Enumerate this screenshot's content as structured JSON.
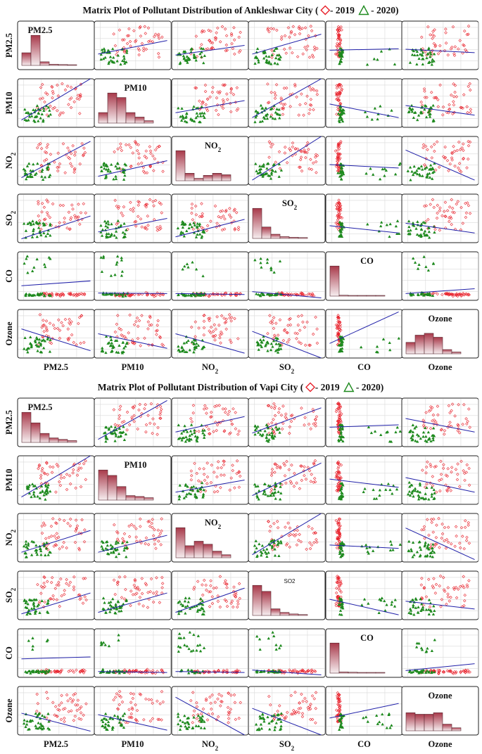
{
  "pollutants": [
    "PM2.5",
    "PM10",
    "NO2",
    "SO2",
    "CO",
    "Ozone"
  ],
  "colors": {
    "y2019": "#e8202a",
    "y2020": "#1e8a1e",
    "fit": "#1f1fa8",
    "frame": "#222222",
    "grid": "#d9d9d9",
    "bar_top": "#a8394a",
    "bar_bottom": "#f6eef0"
  },
  "chart_data": [
    {
      "type": "scatter",
      "title": "Matrix Plot of Pollutant Distribution of Ankleshwar City",
      "legend": {
        "placement": "top",
        "y2019": "- 2019",
        "y2020": "- 2020"
      },
      "grid": true,
      "diagonal_labels": [
        "PM2.5",
        "PM10",
        "NO₂",
        "SO₂",
        "CO",
        "Ozone"
      ],
      "histograms": [
        [
          0.42,
          1.0,
          0.12,
          0.04,
          0.03,
          0.02
        ],
        [
          0.35,
          1.0,
          0.85,
          0.35,
          0.2,
          0.08
        ],
        [
          1.0,
          0.25,
          0.08,
          0.18,
          0.25,
          0.2
        ],
        [
          1.0,
          0.38,
          0.14,
          0.06,
          0.04,
          0.03
        ],
        [
          1.0,
          0.03,
          0.02,
          0.02,
          0.02,
          0.01
        ],
        [
          0.38,
          0.62,
          0.68,
          0.55,
          0.14,
          0.06
        ]
      ],
      "fit_lines": [
        [
          null,
          [
            0.05,
            0.32,
            0.95,
            0.6
          ],
          [
            0.05,
            0.3,
            0.95,
            0.5
          ],
          [
            0.05,
            0.32,
            0.95,
            0.73
          ],
          [
            0.05,
            0.4,
            0.95,
            0.43
          ],
          [
            0.05,
            0.42,
            0.95,
            0.35
          ]
        ],
        [
          [
            0.05,
            0.15,
            0.95,
            1.0
          ],
          null,
          [
            0.05,
            0.3,
            0.95,
            0.55
          ],
          [
            0.05,
            0.2,
            0.95,
            1.0
          ],
          [
            0.05,
            0.48,
            0.95,
            0.2
          ],
          [
            0.05,
            0.45,
            0.95,
            0.25
          ]
        ],
        [
          [
            0.05,
            0.15,
            0.95,
            0.9
          ],
          [
            0.05,
            0.18,
            0.95,
            0.5
          ],
          null,
          [
            0.05,
            0.1,
            0.95,
            1.0
          ],
          [
            0.05,
            0.42,
            0.95,
            0.35
          ],
          [
            0.05,
            0.72,
            0.95,
            0.1
          ]
        ],
        [
          [
            0.05,
            0.08,
            0.95,
            0.55
          ],
          [
            0.05,
            0.22,
            0.95,
            0.5
          ],
          [
            0.05,
            0.12,
            0.95,
            0.48
          ],
          null,
          [
            0.05,
            0.35,
            0.95,
            0.2
          ],
          [
            0.05,
            0.4,
            0.95,
            0.2
          ]
        ],
        [
          [
            0.05,
            0.3,
            0.95,
            0.4
          ],
          [
            0.05,
            0.15,
            0.95,
            0.14
          ],
          [
            0.05,
            0.14,
            0.95,
            0.12
          ],
          [
            0.05,
            0.18,
            0.95,
            0.05
          ],
          null,
          [
            0.05,
            0.14,
            0.95,
            0.24
          ]
        ],
        [
          [
            0.05,
            0.6,
            0.95,
            0.15
          ],
          [
            0.05,
            0.5,
            0.95,
            0.2
          ],
          [
            0.05,
            0.5,
            0.95,
            0.1
          ],
          [
            0.05,
            0.55,
            0.95,
            0.0
          ],
          [
            0.05,
            0.3,
            0.95,
            0.95
          ],
          null
        ]
      ]
    },
    {
      "type": "scatter",
      "title": "Matrix Plot of Pollutant Distribution of Vapi City",
      "legend": {
        "placement": "top",
        "y2019": "- 2019",
        "y2020": "- 2020"
      },
      "grid": true,
      "diagonal_labels": [
        "PM2.5",
        "PM10",
        "NO₂",
        "SO2",
        "CO",
        "Ozone"
      ],
      "histograms": [
        [
          1.0,
          0.65,
          0.3,
          0.15,
          0.1,
          0.06
        ],
        [
          1.0,
          0.82,
          0.45,
          0.15,
          0.12,
          0.08
        ],
        [
          1.0,
          0.4,
          0.55,
          0.45,
          0.22,
          0.1
        ],
        [
          1.0,
          0.8,
          0.22,
          0.1,
          0.05,
          0.03
        ],
        [
          1.0,
          0.04,
          0.03,
          0.02,
          0.02,
          0.01
        ],
        [
          0.6,
          0.55,
          0.55,
          0.6,
          0.22,
          0.1
        ]
      ],
      "fit_lines": [
        [
          null,
          [
            0.05,
            0.15,
            0.95,
            0.95
          ],
          [
            0.05,
            0.3,
            0.95,
            0.62
          ],
          [
            0.05,
            0.28,
            0.95,
            0.8
          ],
          [
            0.05,
            0.4,
            0.95,
            0.45
          ],
          [
            0.05,
            0.58,
            0.95,
            0.3
          ]
        ],
        [
          [
            0.05,
            0.15,
            0.95,
            1.0
          ],
          null,
          [
            0.05,
            0.25,
            0.95,
            0.5
          ],
          [
            0.05,
            0.18,
            0.95,
            0.85
          ],
          [
            0.05,
            0.52,
            0.95,
            0.35
          ],
          [
            0.05,
            0.55,
            0.95,
            0.25
          ]
        ],
        [
          [
            0.05,
            0.2,
            0.95,
            0.65
          ],
          [
            0.05,
            0.2,
            0.95,
            0.55
          ],
          null,
          [
            0.05,
            0.15,
            0.95,
            1.0
          ],
          [
            0.05,
            0.35,
            0.95,
            0.28
          ],
          [
            0.05,
            0.7,
            0.95,
            0.05
          ]
        ],
        [
          [
            0.05,
            0.12,
            0.95,
            0.55
          ],
          [
            0.05,
            0.15,
            0.95,
            0.55
          ],
          [
            0.05,
            0.15,
            0.95,
            0.65
          ],
          null,
          [
            0.05,
            0.42,
            0.95,
            0.1
          ],
          [
            0.05,
            0.38,
            0.95,
            0.22
          ]
        ],
        [
          [
            0.05,
            0.38,
            0.95,
            0.42
          ],
          [
            0.05,
            0.12,
            0.95,
            0.1
          ],
          [
            0.05,
            0.12,
            0.95,
            0.1
          ],
          [
            0.05,
            0.15,
            0.95,
            0.05
          ],
          null,
          [
            0.05,
            0.14,
            0.95,
            0.28
          ]
        ],
        [
          [
            0.05,
            0.45,
            0.95,
            0.08
          ],
          [
            0.05,
            0.42,
            0.95,
            0.1
          ],
          [
            0.05,
            0.78,
            0.95,
            0.0
          ],
          [
            0.05,
            0.55,
            0.95,
            0.0
          ],
          [
            0.05,
            0.35,
            0.95,
            0.65
          ],
          null
        ]
      ]
    }
  ]
}
